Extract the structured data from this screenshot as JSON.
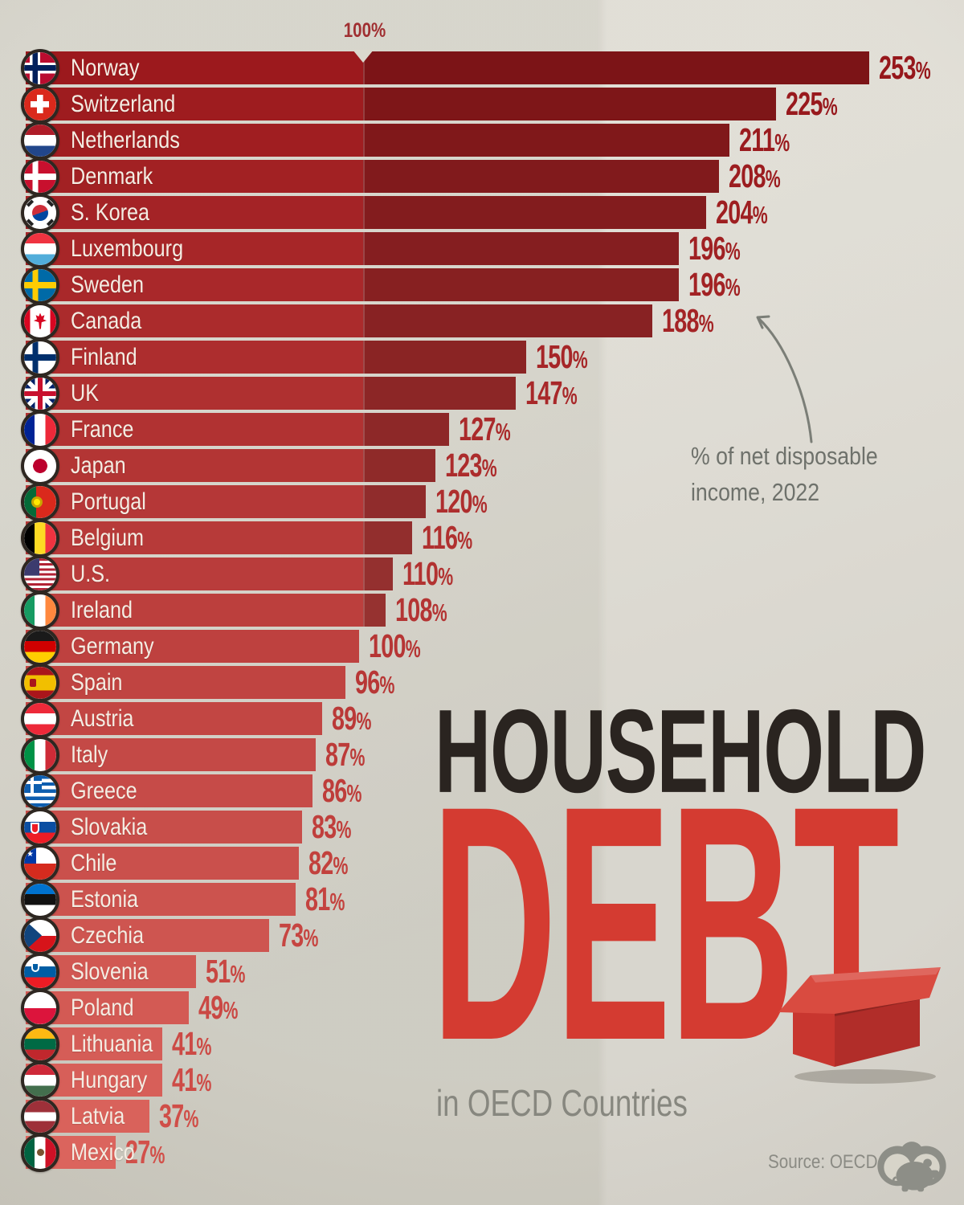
{
  "axis": {
    "marker_label": "100%"
  },
  "annotation": {
    "line1": "% of net disposable",
    "line2": "income, 2022"
  },
  "title": {
    "line1": "HOUSEHOLD",
    "line2": "DEBT",
    "subtitle": "in OECD Countries"
  },
  "footer": {
    "source": "Source: OECD",
    "logo": "visual-capitalist-logo"
  },
  "chart_data": {
    "type": "bar",
    "orientation": "horizontal",
    "title": "HOUSEHOLD DEBT in OECD Countries",
    "note": "% of net disposable income, 2022",
    "unit": "% of net disposable income",
    "axis_marker_value": 100,
    "axis_marker_label": "100%",
    "source": "Source: OECD",
    "legend": "none",
    "grid": false,
    "xlim": [
      0,
      270
    ],
    "categories": [
      "Norway",
      "Switzerland",
      "Netherlands",
      "Denmark",
      "S. Korea",
      "Luxembourg",
      "Sweden",
      "Canada",
      "Finland",
      "UK",
      "France",
      "Japan",
      "Portugal",
      "Belgium",
      "U.S.",
      "Ireland",
      "Germany",
      "Spain",
      "Austria",
      "Italy",
      "Greece",
      "Slovakia",
      "Chile",
      "Estonia",
      "Czechia",
      "Slovenia",
      "Poland",
      "Lithuania",
      "Hungary",
      "Latvia",
      "Mexico"
    ],
    "values": [
      253,
      225,
      211,
      208,
      204,
      196,
      196,
      188,
      150,
      147,
      127,
      123,
      120,
      116,
      110,
      108,
      100,
      96,
      89,
      87,
      86,
      83,
      82,
      81,
      73,
      51,
      49,
      41,
      41,
      37,
      27
    ],
    "value_labels": [
      "253%",
      "225%",
      "211%",
      "208%",
      "204%",
      "196%",
      "196%",
      "188%",
      "150%",
      "147%",
      "127%",
      "123%",
      "120%",
      "116%",
      "110%",
      "108%",
      "100%",
      "96%",
      "89%",
      "87%",
      "86%",
      "83%",
      "82%",
      "81%",
      "73%",
      "51%",
      "49%",
      "41%",
      "41%",
      "37%",
      "27%"
    ],
    "flags": [
      "norway",
      "switzerland",
      "netherlands",
      "denmark",
      "skorea",
      "luxembourg",
      "sweden",
      "canada",
      "finland",
      "uk",
      "france",
      "japan",
      "portugal",
      "belgium",
      "us",
      "ireland",
      "germany",
      "spain",
      "austria",
      "italy",
      "greece",
      "slovakia",
      "chile",
      "estonia",
      "czechia",
      "slovenia",
      "poland",
      "lithuania",
      "hungary",
      "latvia",
      "mexico"
    ],
    "colors": {
      "background": "#d7d4c9",
      "bar_top": "#9c191d",
      "bar_bottom": "#db645d",
      "value_top": "#96171b",
      "value_bottom": "#d2504a",
      "over_100_overlay": "rgba(0,0,0,0.20)",
      "axis_label": "#a02f31",
      "title_dark": "#2a2420",
      "title_red": "#d43b31",
      "annotation_gray": "#6e716b",
      "house_red": "#c8362f"
    }
  }
}
